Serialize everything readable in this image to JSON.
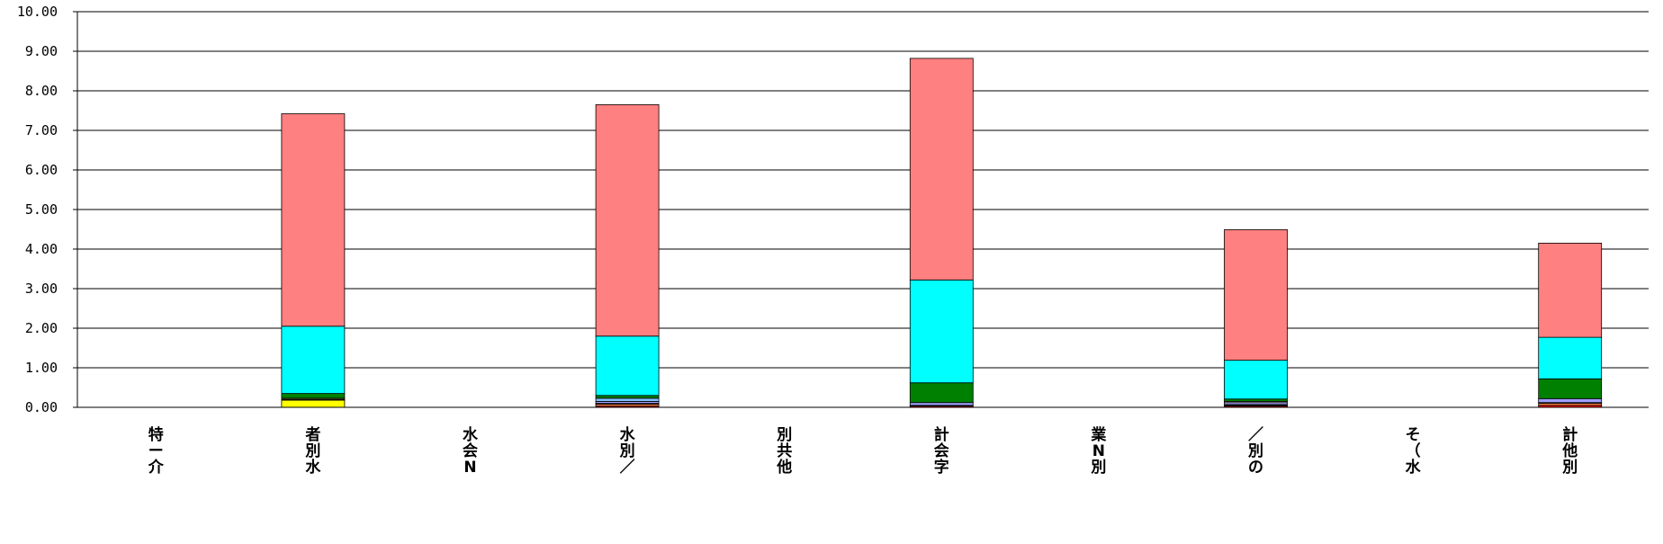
{
  "chart_data": {
    "type": "bar",
    "stacked": true,
    "categories": [
      [
        "特",
        "ー",
        "介"
      ],
      [
        "者",
        "別",
        "水"
      ],
      [
        "水",
        "会",
        "N"
      ],
      [
        "水",
        "別",
        "／"
      ],
      [
        "別",
        "共",
        "他"
      ],
      [
        "計",
        "会",
        "字"
      ],
      [
        "業",
        "N",
        "別"
      ],
      [
        "／",
        "別",
        "の"
      ],
      [
        "そ",
        "（",
        "水"
      ],
      [
        "計",
        "他",
        "別"
      ]
    ],
    "ylim": [
      0,
      10
    ],
    "yticks": [
      "0.00",
      "1.00",
      "2.00",
      "3.00",
      "4.00",
      "5.00",
      "6.00",
      "7.00",
      "8.00",
      "9.00",
      "10.00"
    ],
    "grid": true,
    "legend": "none",
    "series": [
      {
        "color": "#FF0000",
        "values": [
          0,
          0,
          0,
          0.03,
          0,
          0.03,
          0,
          0.03,
          0,
          0.05
        ]
      },
      {
        "color": "#FFFF00",
        "values": [
          0,
          0.18,
          0,
          0,
          0,
          0,
          0,
          0,
          0,
          0
        ]
      },
      {
        "color": "#FF8040",
        "values": [
          0,
          0.02,
          0,
          0.05,
          0,
          0,
          0,
          0.02,
          0,
          0.05
        ]
      },
      {
        "color": "#808040",
        "values": [
          0,
          0.03,
          0,
          0.02,
          0,
          0.02,
          0,
          0.02,
          0,
          0.02
        ]
      },
      {
        "color": "#A0A0FF",
        "values": [
          0,
          0,
          0,
          0.05,
          0,
          0.07,
          0,
          0.05,
          0,
          0.1
        ]
      },
      {
        "color": "#FFFFFF",
        "values": [
          0,
          0,
          0,
          0,
          0,
          0,
          0,
          0.03,
          0,
          0
        ]
      },
      {
        "color": "#80C0FF",
        "values": [
          0,
          0,
          0,
          0.08,
          0,
          0,
          0,
          0,
          0,
          0
        ]
      },
      {
        "color": "#008000",
        "values": [
          0,
          0.12,
          0,
          0.07,
          0,
          0.5,
          0,
          0.06,
          0,
          0.5
        ]
      },
      {
        "color": "#00FFFF",
        "values": [
          0,
          1.7,
          0,
          1.5,
          0,
          2.6,
          0,
          0.98,
          0,
          1.05
        ]
      },
      {
        "color": "#FF8080",
        "values": [
          0,
          5.37,
          0,
          5.85,
          0,
          5.6,
          0,
          3.3,
          0,
          2.38
        ]
      }
    ]
  }
}
